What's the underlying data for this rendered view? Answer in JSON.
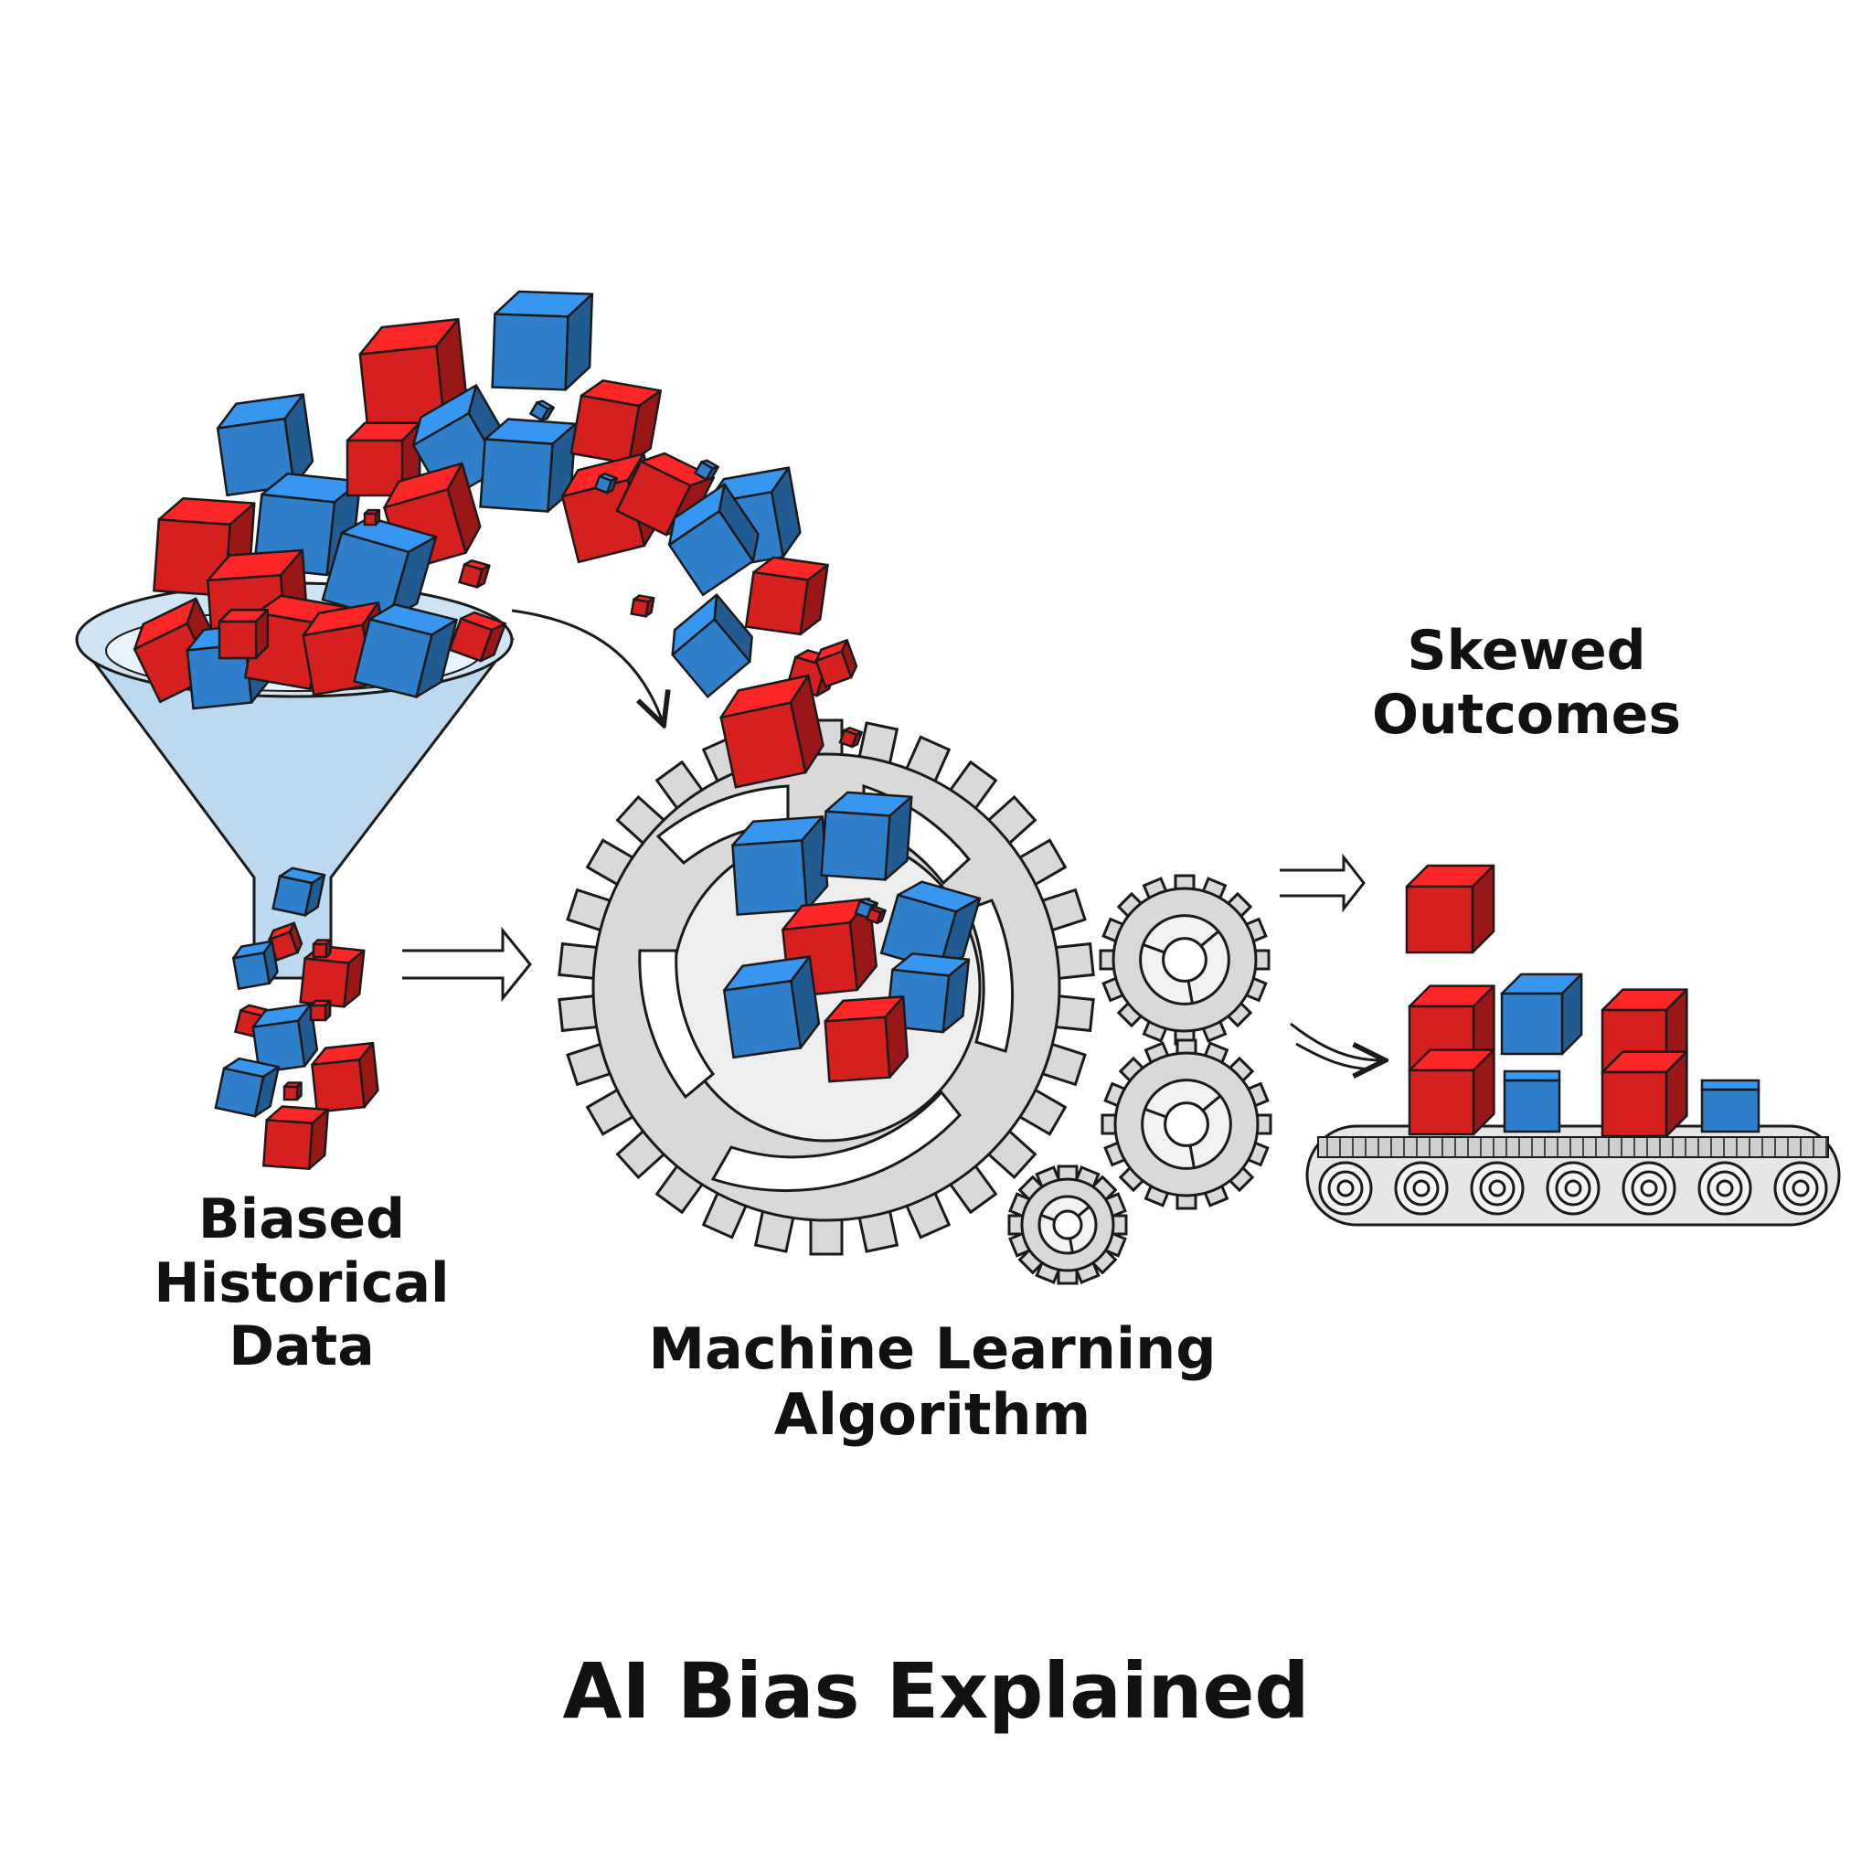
{
  "labels": {
    "input": [
      "Biased",
      "Historical",
      "Data"
    ],
    "algorithm": [
      "Machine Learning",
      "Algorithm"
    ],
    "outcome": [
      "Skewed",
      "Outcomes"
    ]
  },
  "title": "AI Bias Explained",
  "colors": {
    "red_cube": "#d62020",
    "blue_cube": "#2f7fcb",
    "funnel": "#bcd9ef",
    "gear": "#d9d9d9",
    "outline": "#1a1a1a"
  },
  "icons": [
    "funnel-icon",
    "large-gear-icon",
    "small-gear-icon",
    "conveyor-belt-icon",
    "cube-icon",
    "arrow-icon"
  ]
}
